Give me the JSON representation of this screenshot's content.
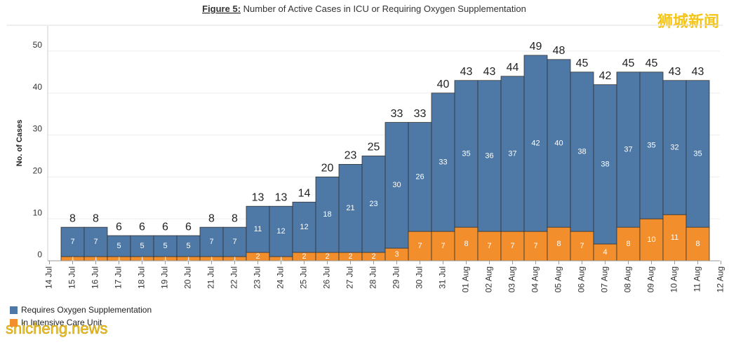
{
  "chart_data": {
    "type": "stacked_bar",
    "title_prefix": "Figure 5:",
    "title": "Number of Active Cases in ICU or Requiring Oxygen Supplementation",
    "y_label": "No. of Cases",
    "categories": [
      "14 Jul",
      "15 Jul",
      "16 Jul",
      "17 Jul",
      "18 Jul",
      "19 Jul",
      "20 Jul",
      "21 Jul",
      "22 Jul",
      "23 Jul",
      "24 Jul",
      "25 Jul",
      "26 Jul",
      "27 Jul",
      "28 Jul",
      "29 Jul",
      "30 Jul",
      "31 Jul",
      "01 Aug",
      "02 Aug",
      "03 Aug",
      "04 Aug",
      "05 Aug",
      "06 Aug",
      "07 Aug",
      "08 Aug",
      "09 Aug",
      "10 Aug",
      "11 Aug",
      "12 Aug"
    ],
    "series": [
      {
        "name": "In Intensive Care Unit",
        "color": "#f28e2b",
        "values": [
          null,
          1,
          1,
          1,
          1,
          1,
          1,
          1,
          1,
          2,
          1,
          2,
          2,
          2,
          2,
          3,
          7,
          7,
          8,
          7,
          7,
          7,
          8,
          7,
          4,
          8,
          10,
          11,
          8,
          null
        ]
      },
      {
        "name": "Requires Oxygen Supplementation",
        "color": "#4e79a7",
        "values": [
          null,
          7,
          7,
          5,
          5,
          5,
          5,
          7,
          7,
          11,
          12,
          12,
          18,
          21,
          23,
          30,
          26,
          33,
          35,
          36,
          37,
          42,
          40,
          38,
          38,
          37,
          35,
          32,
          35,
          null
        ]
      }
    ],
    "total_labels": [
      null,
      8,
      8,
      6,
      6,
      6,
      6,
      8,
      8,
      13,
      13,
      14,
      20,
      23,
      25,
      33,
      33,
      40,
      43,
      43,
      44,
      49,
      48,
      45,
      42,
      45,
      45,
      43,
      43,
      null
    ],
    "ylim": [
      0,
      56
    ],
    "yticks": [
      0,
      10,
      20,
      30,
      40,
      50
    ],
    "grid": true,
    "watermark_top": "狮城新闻",
    "watermark_bottom": "shicheng.news"
  }
}
